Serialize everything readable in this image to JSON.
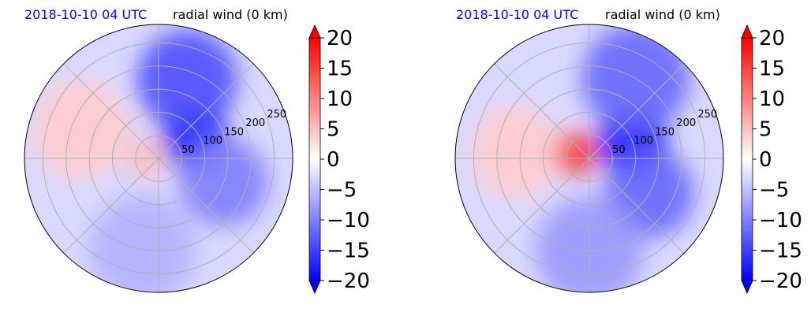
{
  "chart_data": [
    {
      "type": "heatmap",
      "projection": "polar",
      "title_left": "2018-10-10 04 UTC",
      "title_right": "radial wind (0 km)",
      "r_ticks": [
        50,
        100,
        150,
        200,
        250
      ],
      "r_max": 290,
      "theta_grid_deg": [
        0,
        45,
        90,
        135,
        180,
        225,
        270,
        315
      ],
      "grid": true,
      "colorbar": {
        "vmin": -20,
        "vmax": 20,
        "ticks": [
          20,
          15,
          10,
          5,
          0,
          -5,
          -10,
          -15,
          -20
        ],
        "tick_labels": [
          "20",
          "15",
          "10",
          "5",
          "0",
          "−5",
          "−10",
          "−15",
          "−20"
        ],
        "extend": "both",
        "colormap": "bwr",
        "colors": {
          "low": "#0000ff",
          "mid": "#ffffff",
          "high": "#ff0000"
        }
      },
      "field_features": [
        {
          "value": 4,
          "theta_deg": 160,
          "r": 180
        },
        {
          "value": 5,
          "theta_deg": 180,
          "r": 25
        },
        {
          "value": -19,
          "theta_deg": 30,
          "r": 90
        },
        {
          "value": -14,
          "theta_deg": 70,
          "r": 180
        },
        {
          "value": -10,
          "theta_deg": -20,
          "r": 150
        },
        {
          "value": -6,
          "theta_deg": -100,
          "r": 200
        }
      ]
    },
    {
      "type": "heatmap",
      "projection": "polar",
      "title_left": "2018-10-10 04 UTC",
      "title_right": "radial wind (0 km)",
      "r_ticks": [
        50,
        100,
        150,
        200,
        250
      ],
      "r_max": 290,
      "theta_grid_deg": [
        0,
        45,
        90,
        135,
        180,
        225,
        270,
        315
      ],
      "grid": true,
      "colorbar": {
        "vmin": -20,
        "vmax": 20,
        "ticks": [
          20,
          15,
          10,
          5,
          0,
          -5,
          -10,
          -15,
          -20
        ],
        "tick_labels": [
          "20",
          "15",
          "10",
          "5",
          "0",
          "−5",
          "−10",
          "−15",
          "−20"
        ],
        "extend": "both",
        "colormap": "bwr",
        "colors": {
          "low": "#0000ff",
          "mid": "#ffffff",
          "high": "#ff0000"
        }
      },
      "field_features": [
        {
          "value": 4,
          "theta_deg": 175,
          "r": 160
        },
        {
          "value": 16,
          "theta_deg": 160,
          "r": 30
        },
        {
          "value": -20,
          "theta_deg": 20,
          "r": 100
        },
        {
          "value": -12,
          "theta_deg": 60,
          "r": 200
        },
        {
          "value": -12,
          "theta_deg": -30,
          "r": 150
        },
        {
          "value": -8,
          "theta_deg": -90,
          "r": 200
        }
      ]
    }
  ]
}
